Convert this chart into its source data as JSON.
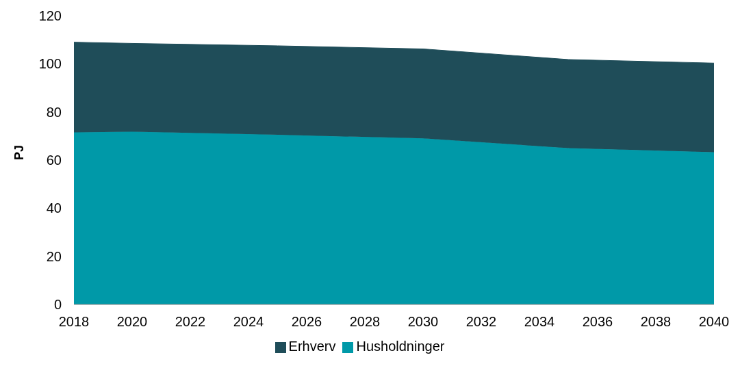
{
  "chart_data": {
    "type": "area",
    "ylabel": "PJ",
    "stacked": true,
    "x": [
      2018,
      2020,
      2025,
      2030,
      2035,
      2040
    ],
    "series": [
      {
        "name": "Husholdninger",
        "color": "#0099a8",
        "values": [
          71.5,
          71.8,
          70.5,
          69,
          65,
          63.3
        ]
      },
      {
        "name": "Erhverv",
        "color": "#1f4d59",
        "values": [
          37.5,
          36.7,
          37,
          37.2,
          36.8,
          37
        ]
      }
    ],
    "xlim": [
      2018,
      2040
    ],
    "xticks": [
      2018,
      2020,
      2022,
      2024,
      2026,
      2028,
      2030,
      2032,
      2034,
      2036,
      2038,
      2040
    ],
    "ylim": [
      0,
      120
    ],
    "yticks": [
      0,
      20,
      40,
      60,
      80,
      100,
      120
    ],
    "grid": false,
    "legend": "bottom"
  }
}
